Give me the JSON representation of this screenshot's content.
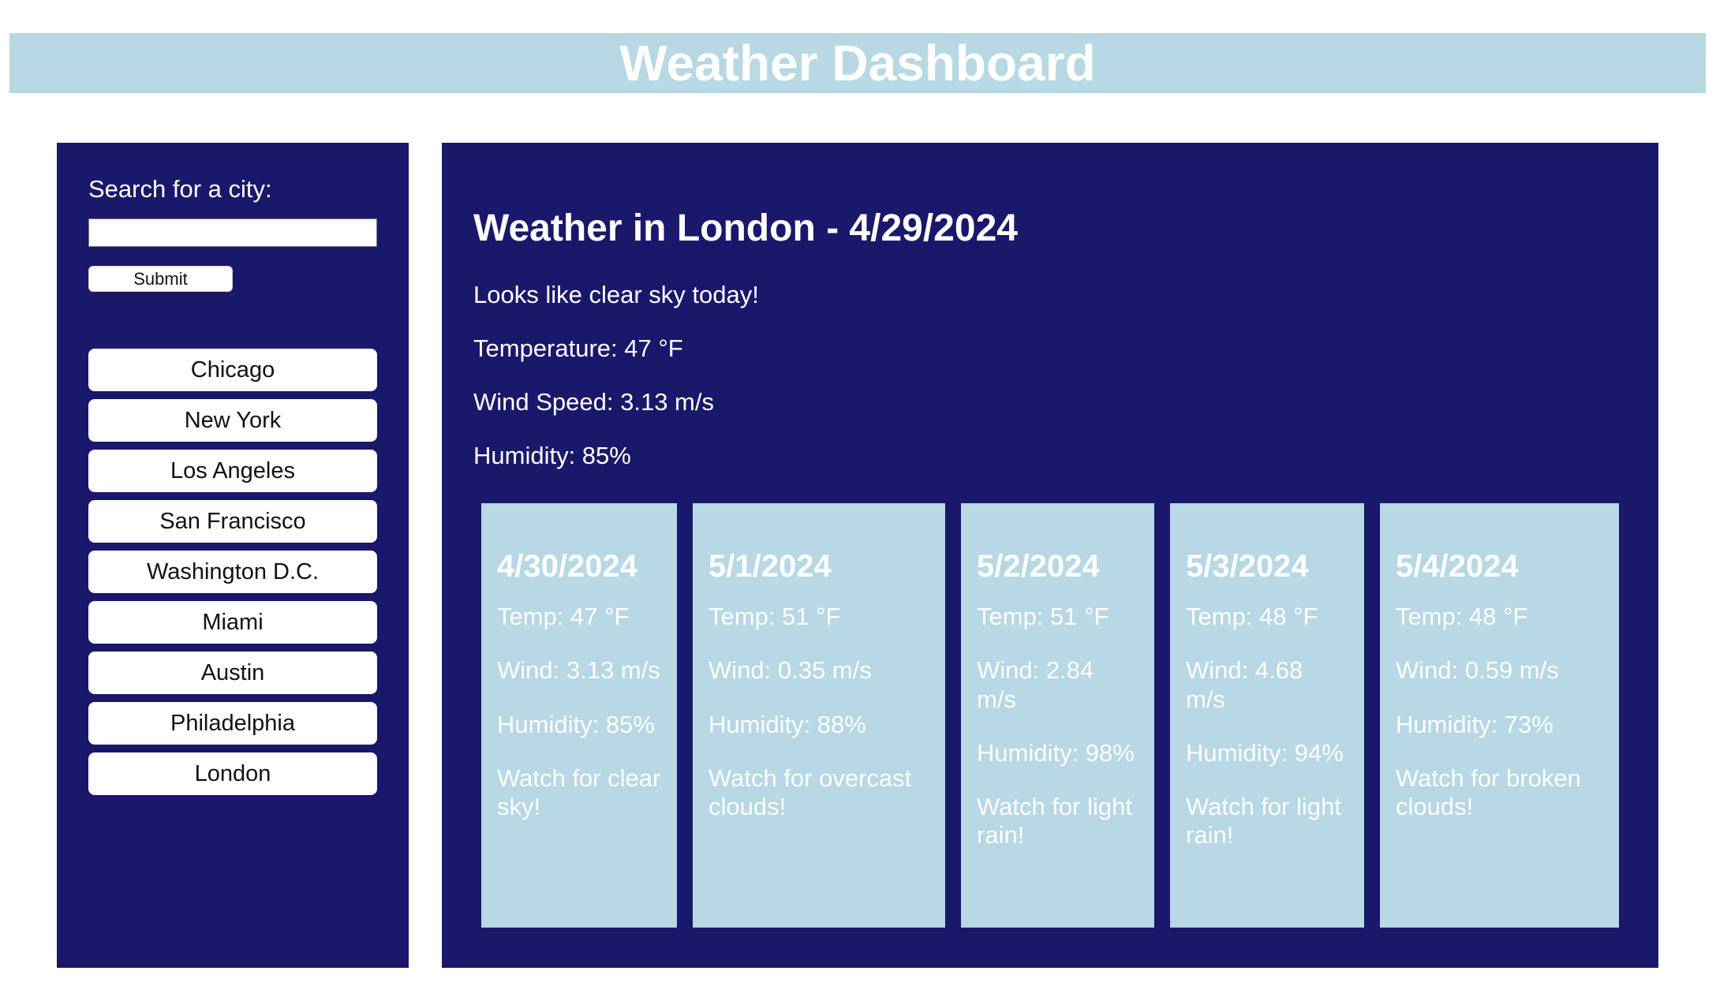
{
  "header": {
    "title": "Weather Dashboard"
  },
  "sidebar": {
    "search_label": "Search for a city:",
    "search_value": "",
    "submit_label": "Submit",
    "cities": [
      "Chicago",
      "New York",
      "Los Angeles",
      "San Francisco",
      "Washington D.C.",
      "Miami",
      "Austin",
      "Philadelphia",
      "London"
    ]
  },
  "current": {
    "title": "Weather in London - 4/29/2024",
    "summary": "Looks like clear sky today!",
    "temperature": "Temperature: 47 °F",
    "wind": "Wind Speed: 3.13 m/s",
    "humidity": "Humidity: 85%"
  },
  "forecast": [
    {
      "date": "4/30/2024",
      "temp": "Temp: 47 °F",
      "wind": "Wind: 3.13 m/s",
      "humidity": "Humidity: 85%",
      "note": "Watch for clear sky!"
    },
    {
      "date": "5/1/2024",
      "temp": "Temp: 51 °F",
      "wind": "Wind: 0.35 m/s",
      "humidity": "Humidity: 88%",
      "note": "Watch for overcast clouds!"
    },
    {
      "date": "5/2/2024",
      "temp": "Temp: 51 °F",
      "wind": "Wind: 2.84 m/s",
      "humidity": "Humidity: 98%",
      "note": "Watch for light rain!"
    },
    {
      "date": "5/3/2024",
      "temp": "Temp: 48 °F",
      "wind": "Wind: 4.68 m/s",
      "humidity": "Humidity: 94%",
      "note": "Watch for light rain!"
    },
    {
      "date": "5/4/2024",
      "temp": "Temp: 48 °F",
      "wind": "Wind: 0.59 m/s",
      "humidity": "Humidity: 73%",
      "note": "Watch for broken clouds!"
    }
  ],
  "colors": {
    "header_bg": "#b7d8e4",
    "panel_bg": "#1a186b",
    "card_bg": "#b7d8e4",
    "text_light": "#ffffff"
  }
}
